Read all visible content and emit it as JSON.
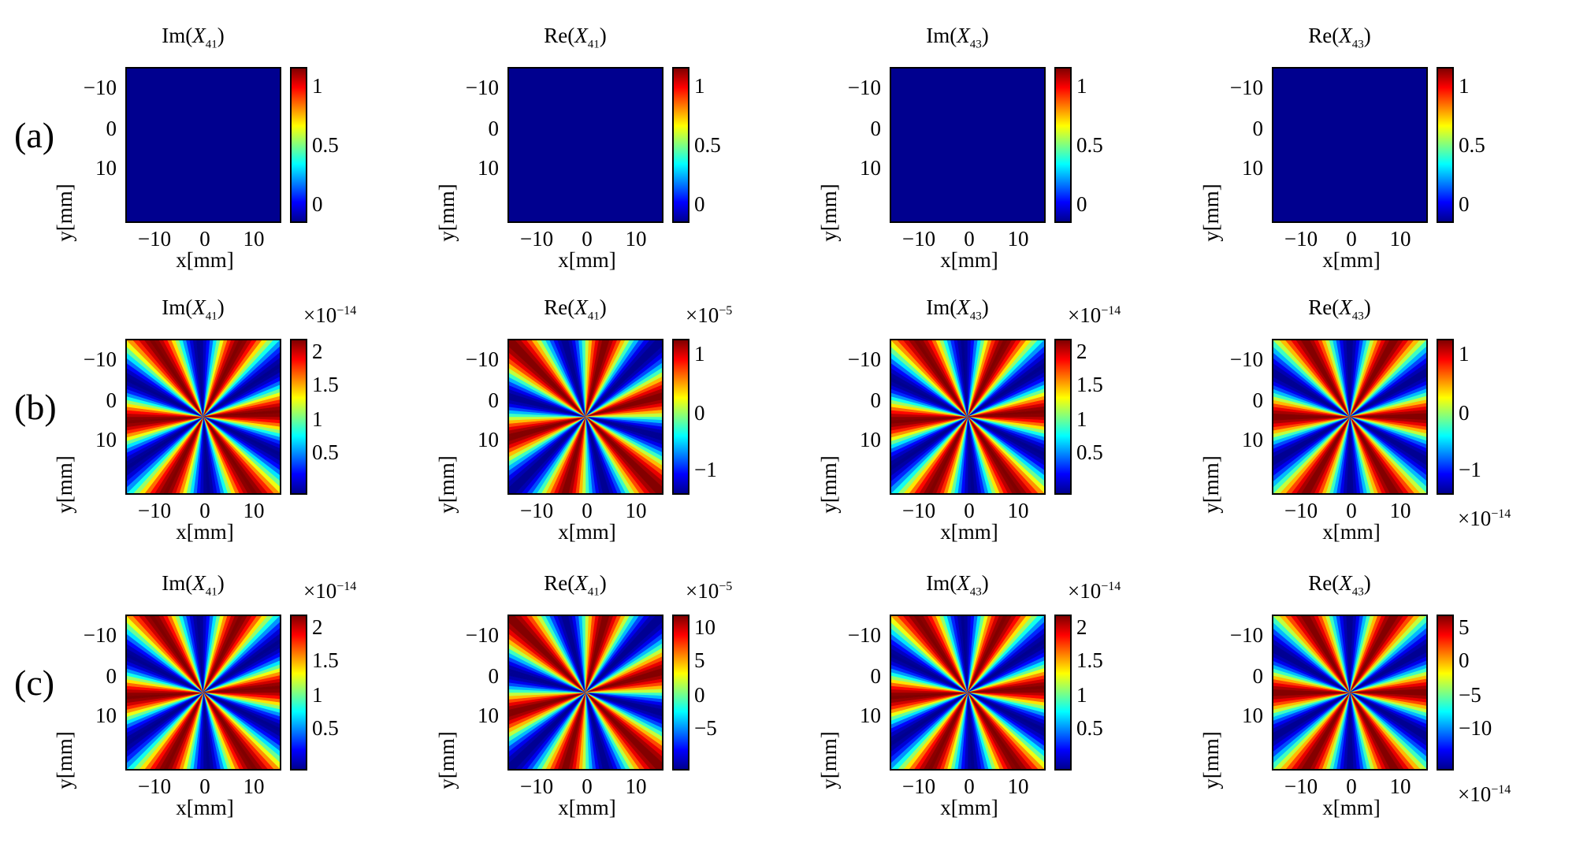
{
  "figure": {
    "rows": [
      {
        "label": "(a)",
        "panels": [
          {
            "func": "Im",
            "var": "X",
            "sub": "41",
            "colorbar": {
              "ticks": [
                "0",
                "0.5",
                "1"
              ],
              "multiplier": "",
              "multiplier_pos": "none"
            },
            "field": "flat"
          },
          {
            "func": "Re",
            "var": "X",
            "sub": "41",
            "colorbar": {
              "ticks": [
                "0",
                "0.5",
                "1"
              ],
              "multiplier": "",
              "multiplier_pos": "none"
            },
            "field": "flat"
          },
          {
            "func": "Im",
            "var": "X",
            "sub": "43",
            "colorbar": {
              "ticks": [
                "0",
                "0.5",
                "1"
              ],
              "multiplier": "",
              "multiplier_pos": "none"
            },
            "field": "flat"
          },
          {
            "func": "Re",
            "var": "X",
            "sub": "43",
            "colorbar": {
              "ticks": [
                "0",
                "0.5",
                "1"
              ],
              "multiplier": "",
              "multiplier_pos": "none"
            },
            "field": "flat"
          }
        ]
      },
      {
        "label": "(b)",
        "panels": [
          {
            "func": "Im",
            "var": "X",
            "sub": "41",
            "colorbar": {
              "ticks": [
                "0.5",
                "1",
                "1.5",
                "2"
              ],
              "multiplier": "×10",
              "exponent": "−14",
              "multiplier_pos": "top"
            },
            "field": "im"
          },
          {
            "func": "Re",
            "var": "X",
            "sub": "41",
            "colorbar": {
              "ticks": [
                "−1",
                "0",
                "1"
              ],
              "multiplier": "×10",
              "exponent": "−5",
              "multiplier_pos": "top"
            },
            "field": "re"
          },
          {
            "func": "Im",
            "var": "X",
            "sub": "43",
            "colorbar": {
              "ticks": [
                "0.5",
                "1",
                "1.5",
                "2"
              ],
              "multiplier": "×10",
              "exponent": "−14",
              "multiplier_pos": "top"
            },
            "field": "im"
          },
          {
            "func": "Re",
            "var": "X",
            "sub": "43",
            "colorbar": {
              "ticks": [
                "−1",
                "0",
                "1"
              ],
              "multiplier": "×10",
              "exponent": "−14",
              "multiplier_pos": "bottom"
            },
            "field": "re43"
          }
        ]
      },
      {
        "label": "(c)",
        "panels": [
          {
            "func": "Im",
            "var": "X",
            "sub": "41",
            "colorbar": {
              "ticks": [
                "0.5",
                "1",
                "1.5",
                "2"
              ],
              "multiplier": "×10",
              "exponent": "−14",
              "multiplier_pos": "top"
            },
            "field": "im"
          },
          {
            "func": "Re",
            "var": "X",
            "sub": "41",
            "colorbar": {
              "ticks": [
                "−5",
                "0",
                "5",
                "10"
              ],
              "multiplier": "×10",
              "exponent": "−5",
              "multiplier_pos": "top"
            },
            "field": "re"
          },
          {
            "func": "Im",
            "var": "X",
            "sub": "43",
            "colorbar": {
              "ticks": [
                "0.5",
                "1",
                "1.5",
                "2"
              ],
              "multiplier": "×10",
              "exponent": "−14",
              "multiplier_pos": "top"
            },
            "field": "im"
          },
          {
            "func": "Re",
            "var": "X",
            "sub": "43",
            "colorbar": {
              "ticks": [
                "−10",
                "−5",
                "0",
                "5"
              ],
              "multiplier": "×10",
              "exponent": "−14",
              "multiplier_pos": "bottom"
            },
            "field": "re43"
          }
        ]
      }
    ],
    "xlabel": "x[mm]",
    "ylabel": "y[mm]",
    "x_ticks": [
      "−10",
      "0",
      "10"
    ],
    "y_ticks": [
      "−10",
      "0",
      "10"
    ],
    "colormap": [
      "#00008f",
      "#0000ff",
      "#00ffff",
      "#ffff00",
      "#ff0000",
      "#800000"
    ]
  },
  "chart_data": {
    "type": "heatmap",
    "xlabel": "x[mm]",
    "ylabel": "y[mm]",
    "xlim": [
      -15,
      15
    ],
    "ylim": [
      -15,
      15
    ],
    "x_ticks": [
      -10,
      0,
      10
    ],
    "y_ticks": [
      -10,
      0,
      10
    ],
    "y_axis_reversed": true,
    "angular_lobes": 12,
    "panels": [
      {
        "row": "(a)",
        "title": "Im(X41)",
        "clim": [
          0,
          1
        ],
        "pattern": "uniform at minimum"
      },
      {
        "row": "(a)",
        "title": "Re(X41)",
        "clim": [
          0,
          1
        ],
        "pattern": "uniform at minimum"
      },
      {
        "row": "(a)",
        "title": "Im(X43)",
        "clim": [
          0,
          1
        ],
        "pattern": "uniform at minimum"
      },
      {
        "row": "(a)",
        "title": "Re(X43)",
        "clim": [
          0,
          1
        ],
        "pattern": "uniform at minimum"
      },
      {
        "row": "(b)",
        "title": "Im(X41)",
        "clim": [
          0.2,
          2.3
        ],
        "scale": "1e-14",
        "pattern": "angular sectors"
      },
      {
        "row": "(b)",
        "title": "Re(X41)",
        "clim": [
          -1.2,
          1.2
        ],
        "scale": "1e-5",
        "pattern": "angular sectors"
      },
      {
        "row": "(b)",
        "title": "Im(X43)",
        "clim": [
          0.2,
          2.3
        ],
        "scale": "1e-14",
        "pattern": "angular sectors"
      },
      {
        "row": "(b)",
        "title": "Re(X43)",
        "clim": [
          -1.2,
          1.2
        ],
        "scale": "1e-14",
        "pattern": "angular sectors"
      },
      {
        "row": "(c)",
        "title": "Im(X41)",
        "clim": [
          0.2,
          2.3
        ],
        "scale": "1e-14",
        "pattern": "angular sectors"
      },
      {
        "row": "(c)",
        "title": "Re(X41)",
        "clim": [
          -8,
          13
        ],
        "scale": "1e-5",
        "pattern": "angular sectors"
      },
      {
        "row": "(c)",
        "title": "Im(X43)",
        "clim": [
          0.2,
          2.3
        ],
        "scale": "1e-14",
        "pattern": "angular sectors"
      },
      {
        "row": "(c)",
        "title": "Re(X43)",
        "clim": [
          -12,
          8
        ],
        "scale": "1e-14",
        "pattern": "angular sectors"
      }
    ]
  }
}
